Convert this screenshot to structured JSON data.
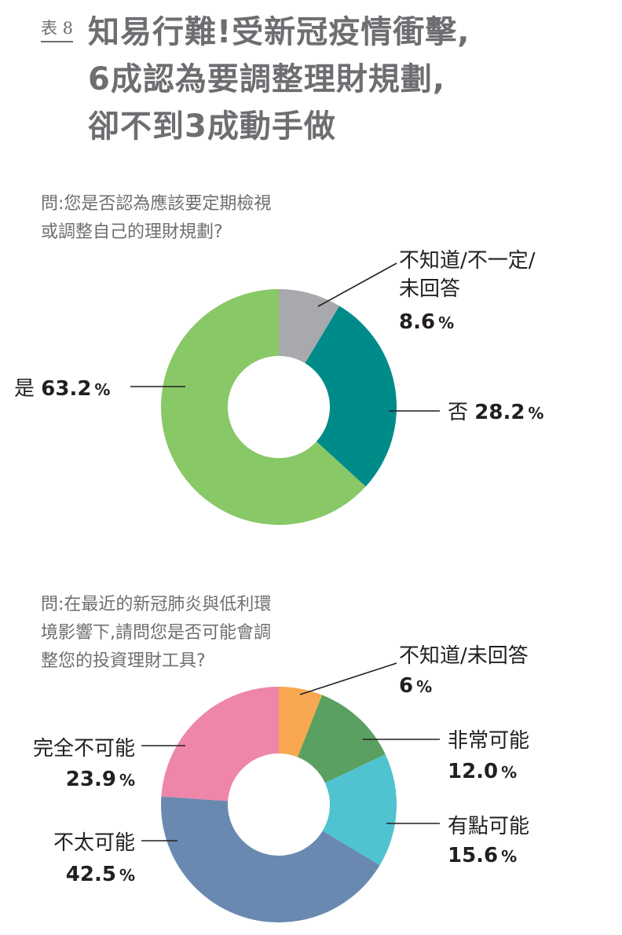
{
  "header": {
    "table_no": "表 8",
    "title_lines": [
      "知易行難!受新冠疫情衝擊,",
      "6成認為要調整理財規劃,",
      "卻不到3成動手做"
    ]
  },
  "chart_data": [
    {
      "type": "pie",
      "style": "donut",
      "question_lines": [
        "問:您是否認為應該要定期檢視",
        "或調整自己的理財規劃?"
      ],
      "unit": "%",
      "slices": [
        {
          "label_lines": [
            "不知道/不一定/",
            "未回答"
          ],
          "value": 8.6,
          "value_text": "8.6",
          "color": "#a7a9ac"
        },
        {
          "label_lines": [
            "否"
          ],
          "value": 28.2,
          "value_text": "28.2",
          "color": "#008b8b"
        },
        {
          "label_lines": [
            "是"
          ],
          "value": 63.2,
          "value_text": "63.2",
          "color": "#88c866"
        }
      ]
    },
    {
      "type": "pie",
      "style": "donut",
      "question_lines": [
        "問:在最近的新冠肺炎與低利環",
        "境影響下,請問您是否可能會調",
        "整您的投資理財工具?"
      ],
      "unit": "%",
      "slices": [
        {
          "label_lines": [
            "不知道/未回答"
          ],
          "value": 6,
          "value_text": "6",
          "color": "#f7a850"
        },
        {
          "label_lines": [
            "非常可能"
          ],
          "value": 12.0,
          "value_text": "12.0",
          "color": "#59a061"
        },
        {
          "label_lines": [
            "有點可能"
          ],
          "value": 15.6,
          "value_text": "15.6",
          "color": "#4fc3cf"
        },
        {
          "label_lines": [
            "不太可能"
          ],
          "value": 42.5,
          "value_text": "42.5",
          "color": "#6989b0"
        },
        {
          "label_lines": [
            "完全不可能"
          ],
          "value": 23.9,
          "value_text": "23.9",
          "color": "#ee86aa"
        }
      ]
    }
  ]
}
